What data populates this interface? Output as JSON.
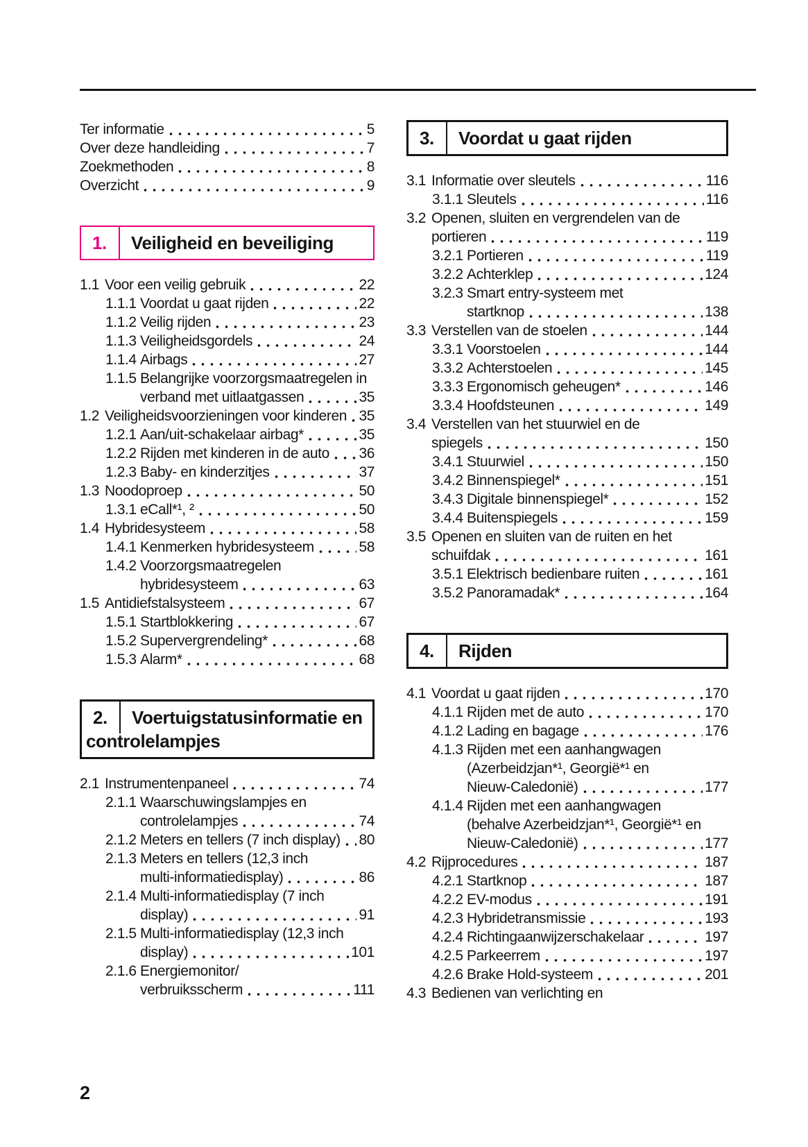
{
  "page": {
    "page_number": "2",
    "ink_color": "#141414",
    "accent_color": "#e6007e"
  },
  "front_matter": {
    "items": [
      {
        "title": "Ter informatie",
        "page": "5"
      },
      {
        "title": "Over deze handleiding",
        "page": "7"
      },
      {
        "title": "Zoekmethoden",
        "page": "8"
      },
      {
        "title": "Overzicht",
        "page": "9"
      }
    ]
  },
  "sections": [
    {
      "number_label": "1.",
      "title": "Veiligheid en beveiliging",
      "accent": true,
      "column": "left",
      "entries": [
        {
          "num": "1.1",
          "title": "Voor een veilig gebruik",
          "page": "22"
        },
        {
          "num": "1.1.1",
          "title": "Voordat u gaat rijden",
          "page": "22"
        },
        {
          "num": "1.1.2",
          "title": "Veilig rijden",
          "page": "23"
        },
        {
          "num": "1.1.3",
          "title": "Veiligheidsgordels",
          "page": "24"
        },
        {
          "num": "1.1.4",
          "title": "Airbags",
          "page": "27"
        },
        {
          "num": "1.1.5",
          "title": "Belangrijke voorzorgsmaatregelen in\nverband met uitlaatgassen",
          "page": "35"
        },
        {
          "num": "1.2",
          "title": "Veiligheidsvoorzieningen voor kinderen",
          "page": "35"
        },
        {
          "num": "1.2.1",
          "title": "Aan/uit-schakelaar airbag*",
          "page": "35"
        },
        {
          "num": "1.2.2",
          "title": "Rijden met kinderen in de auto",
          "page": "36"
        },
        {
          "num": "1.2.3",
          "title": "Baby- en kinderzitjes",
          "page": "37"
        },
        {
          "num": "1.3",
          "title": "Noodoproep",
          "page": "50"
        },
        {
          "num": "1.3.1",
          "title": "eCall*¹, ²",
          "page": "50"
        },
        {
          "num": "1.4",
          "title": "Hybridesysteem",
          "page": "58"
        },
        {
          "num": "1.4.1",
          "title": "Kenmerken hybridesysteem",
          "page": "58"
        },
        {
          "num": "1.4.2",
          "title": "Voorzorgsmaatregelen\nhybridesysteem",
          "page": "63"
        },
        {
          "num": "1.5",
          "title": "Antidiefstalsysteem",
          "page": "67"
        },
        {
          "num": "1.5.1",
          "title": "Startblokkering",
          "page": "67"
        },
        {
          "num": "1.5.2",
          "title": "Supervergrendeling*",
          "page": "68"
        },
        {
          "num": "1.5.3",
          "title": "Alarm*",
          "page": "68"
        }
      ]
    },
    {
      "number_label": "2.",
      "title": "Voertuigstatusinformatie en controlelampjes",
      "accent": false,
      "column": "left",
      "entries": [
        {
          "num": "2.1",
          "title": "Instrumentenpaneel",
          "page": "74"
        },
        {
          "num": "2.1.1",
          "title": "Waarschuwingslampjes en\ncontrolelampjes",
          "page": "74"
        },
        {
          "num": "2.1.2",
          "title": "Meters en tellers (7 inch display)",
          "page": "80"
        },
        {
          "num": "2.1.3",
          "title": "Meters en tellers (12,3 inch\nmulti-informatiedisplay)",
          "page": "86"
        },
        {
          "num": "2.1.4",
          "title": "Multi-informatiedisplay (7 inch\ndisplay)",
          "page": "91"
        },
        {
          "num": "2.1.5",
          "title": "Multi-informatiedisplay (12,3 inch\ndisplay)",
          "page": "101"
        },
        {
          "num": "2.1.6",
          "title": "Energiemonitor/\nverbruiksscherm",
          "page": "111"
        }
      ]
    },
    {
      "number_label": "3.",
      "title": "Voordat u gaat rijden",
      "accent": false,
      "column": "right",
      "entries": [
        {
          "num": "3.1",
          "title": "Informatie over sleutels",
          "page": "116"
        },
        {
          "num": "3.1.1",
          "title": "Sleutels",
          "page": "116"
        },
        {
          "num": "3.2",
          "title": "Openen, sluiten en vergrendelen van de\nportieren",
          "page": "119"
        },
        {
          "num": "3.2.1",
          "title": "Portieren",
          "page": "119"
        },
        {
          "num": "3.2.2",
          "title": "Achterklep",
          "page": "124"
        },
        {
          "num": "3.2.3",
          "title": "Smart entry-systeem met\nstartknop",
          "page": "138"
        },
        {
          "num": "3.3",
          "title": "Verstellen van de stoelen",
          "page": "144"
        },
        {
          "num": "3.3.1",
          "title": "Voorstoelen",
          "page": "144"
        },
        {
          "num": "3.3.2",
          "title": "Achterstoelen",
          "page": "145"
        },
        {
          "num": "3.3.3",
          "title": "Ergonomisch geheugen*",
          "page": "146"
        },
        {
          "num": "3.3.4",
          "title": "Hoofdsteunen",
          "page": "149"
        },
        {
          "num": "3.4",
          "title": "Verstellen van het stuurwiel en de\nspiegels",
          "page": "150"
        },
        {
          "num": "3.4.1",
          "title": "Stuurwiel",
          "page": "150"
        },
        {
          "num": "3.4.2",
          "title": "Binnenspiegel*",
          "page": "151"
        },
        {
          "num": "3.4.3",
          "title": "Digitale binnenspiegel*",
          "page": "152"
        },
        {
          "num": "3.4.4",
          "title": "Buitenspiegels",
          "page": "159"
        },
        {
          "num": "3.5",
          "title": "Openen en sluiten van de ruiten en het\nschuifdak",
          "page": "161"
        },
        {
          "num": "3.5.1",
          "title": "Elektrisch bedienbare ruiten",
          "page": "161"
        },
        {
          "num": "3.5.2",
          "title": "Panoramadak*",
          "page": "164"
        }
      ]
    },
    {
      "number_label": "4.",
      "title": "Rijden",
      "accent": false,
      "column": "right",
      "entries": [
        {
          "num": "4.1",
          "title": "Voordat u gaat rijden",
          "page": "170"
        },
        {
          "num": "4.1.1",
          "title": "Rijden met de auto",
          "page": "170"
        },
        {
          "num": "4.1.2",
          "title": "Lading en bagage",
          "page": "176"
        },
        {
          "num": "4.1.3",
          "title": "Rijden met een aanhangwagen\n(Azerbeidzjan*¹, Georgië*¹ en\nNieuw-Caledonië)",
          "page": "177"
        },
        {
          "num": "4.1.4",
          "title": "Rijden met een aanhangwagen\n(behalve Azerbeidzjan*¹, Georgië*¹ en\nNieuw-Caledonië)",
          "page": "177"
        },
        {
          "num": "4.2",
          "title": "Rijprocedures",
          "page": "187"
        },
        {
          "num": "4.2.1",
          "title": "Startknop",
          "page": "187"
        },
        {
          "num": "4.2.2",
          "title": "EV-modus",
          "page": "191"
        },
        {
          "num": "4.2.3",
          "title": "Hybridetransmissie",
          "page": "193"
        },
        {
          "num": "4.2.4",
          "title": "Richtingaanwijzerschakelaar",
          "page": "197"
        },
        {
          "num": "4.2.5",
          "title": "Parkeerrem",
          "page": "197"
        },
        {
          "num": "4.2.6",
          "title": "Brake Hold-systeem",
          "page": "201"
        },
        {
          "num": "4.3",
          "title": "Bedienen van verlichting en",
          "page": ""
        }
      ]
    }
  ]
}
